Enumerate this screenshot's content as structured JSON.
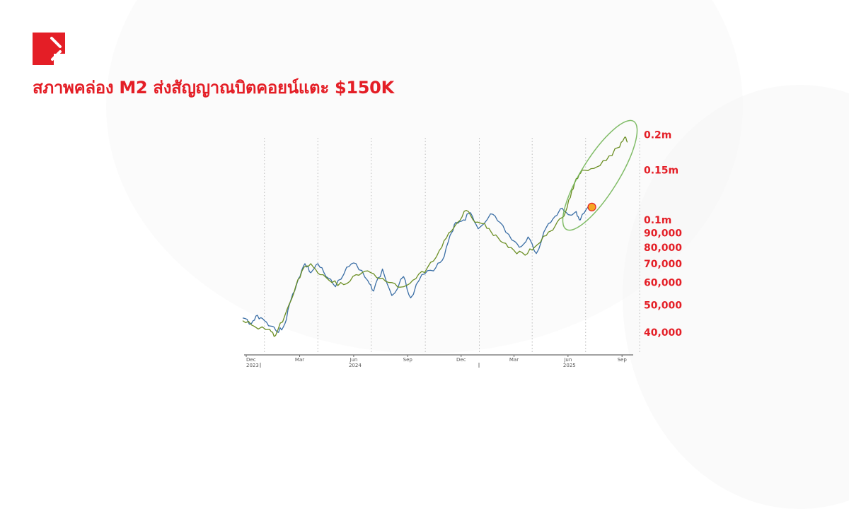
{
  "header": {
    "title": "สภาพคล่อง M2 ส่งสัญญาณบิตคอยน์แตะ $150K",
    "brand_color": "#e41e26"
  },
  "chart_data": {
    "type": "line",
    "title": "",
    "xlabel": "",
    "ylabel": "",
    "y_scale": "log",
    "ylim": [
      38000,
      210000
    ],
    "xlim": [
      "2023-11-25",
      "2025-09-15"
    ],
    "grid": "horizontal red lines at level labels, vertical dotted quarter lines",
    "x_ticks": [
      {
        "date": "2023-12-01",
        "label": "Dec",
        "year": "2023"
      },
      {
        "date": "2024-03-01",
        "label": "Mar"
      },
      {
        "date": "2024-06-01",
        "label": "Jun",
        "year": "2024"
      },
      {
        "date": "2024-09-01",
        "label": "Sep"
      },
      {
        "date": "2024-12-01",
        "label": "Dec"
      },
      {
        "date": "2025-03-01",
        "label": "Mar"
      },
      {
        "date": "2025-06-01",
        "label": "Jun",
        "year": "2025"
      },
      {
        "date": "2025-09-01",
        "label": "Sep"
      }
    ],
    "levels": [
      {
        "value": 200000,
        "label": "0.2m"
      },
      {
        "value": 150000,
        "label": "0.15m"
      },
      {
        "value": 100000,
        "label": "0.1m"
      },
      {
        "value": 90000,
        "label": "90,000"
      },
      {
        "value": 80000,
        "label": "80,000"
      },
      {
        "value": 70000,
        "label": "70,000"
      },
      {
        "value": 60000,
        "label": "60,000"
      },
      {
        "value": 50000,
        "label": "50,000"
      },
      {
        "value": 40000,
        "label": "40,000"
      }
    ],
    "level_color": "#e41e26",
    "series": [
      {
        "color": "#3a6ea5",
        "points": [
          [
            "2023-11-25",
            45000
          ],
          [
            "2023-12-10",
            43000
          ],
          [
            "2023-12-20",
            46000
          ],
          [
            "2024-01-01",
            44000
          ],
          [
            "2024-01-15",
            42000
          ],
          [
            "2024-01-25",
            40000
          ],
          [
            "2024-02-05",
            43000
          ],
          [
            "2024-02-15",
            52000
          ],
          [
            "2024-02-28",
            62000
          ],
          [
            "2024-03-10",
            70000
          ],
          [
            "2024-03-20",
            65000
          ],
          [
            "2024-04-01",
            70000
          ],
          [
            "2024-04-15",
            63000
          ],
          [
            "2024-05-01",
            58000
          ],
          [
            "2024-05-20",
            68000
          ],
          [
            "2024-06-05",
            70000
          ],
          [
            "2024-06-25",
            61000
          ],
          [
            "2024-07-05",
            56000
          ],
          [
            "2024-07-20",
            67000
          ],
          [
            "2024-08-05",
            54000
          ],
          [
            "2024-08-25",
            63000
          ],
          [
            "2024-09-06",
            53000
          ],
          [
            "2024-09-25",
            64000
          ],
          [
            "2024-10-15",
            66000
          ],
          [
            "2024-10-30",
            72000
          ],
          [
            "2024-11-12",
            88000
          ],
          [
            "2024-11-22",
            98000
          ],
          [
            "2024-12-05",
            100000
          ],
          [
            "2024-12-17",
            106000
          ],
          [
            "2024-12-30",
            93000
          ],
          [
            "2025-01-20",
            105000
          ],
          [
            "2025-02-05",
            98000
          ],
          [
            "2025-02-25",
            85000
          ],
          [
            "2025-03-10",
            80000
          ],
          [
            "2025-03-25",
            87000
          ],
          [
            "2025-04-08",
            76000
          ],
          [
            "2025-04-25",
            94000
          ],
          [
            "2025-05-10",
            103000
          ],
          [
            "2025-05-22",
            110000
          ],
          [
            "2025-06-05",
            104000
          ],
          [
            "2025-06-15",
            107000
          ],
          [
            "2025-06-22",
            100000
          ],
          [
            "2025-07-05",
            111000
          ]
        ]
      },
      {
        "color": "#6b8e23",
        "points": [
          [
            "2023-11-25",
            44000
          ],
          [
            "2023-12-15",
            42000
          ],
          [
            "2024-01-10",
            41000
          ],
          [
            "2024-01-20",
            39000
          ],
          [
            "2024-02-05",
            46000
          ],
          [
            "2024-02-20",
            55000
          ],
          [
            "2024-03-05",
            66000
          ],
          [
            "2024-03-20",
            70000
          ],
          [
            "2024-04-05",
            64000
          ],
          [
            "2024-04-25",
            60000
          ],
          [
            "2024-05-15",
            59000
          ],
          [
            "2024-06-05",
            64000
          ],
          [
            "2024-06-25",
            66000
          ],
          [
            "2024-07-15",
            62000
          ],
          [
            "2024-08-05",
            60000
          ],
          [
            "2024-08-25",
            58000
          ],
          [
            "2024-09-15",
            62000
          ],
          [
            "2024-10-05",
            68000
          ],
          [
            "2024-10-25",
            78000
          ],
          [
            "2024-11-10",
            90000
          ],
          [
            "2024-11-25",
            98000
          ],
          [
            "2024-12-10",
            108000
          ],
          [
            "2024-12-25",
            98000
          ],
          [
            "2025-01-10",
            97000
          ],
          [
            "2025-01-25",
            88000
          ],
          [
            "2025-02-10",
            83000
          ],
          [
            "2025-03-01",
            78000
          ],
          [
            "2025-03-20",
            75000
          ],
          [
            "2025-04-05",
            80000
          ],
          [
            "2025-04-25",
            88000
          ],
          [
            "2025-05-10",
            95000
          ],
          [
            "2025-05-25",
            103000
          ],
          [
            "2025-06-05",
            120000
          ],
          [
            "2025-06-15",
            140000
          ],
          [
            "2025-06-25",
            150000
          ],
          [
            "2025-07-15",
            152000
          ],
          [
            "2025-08-05",
            162000
          ],
          [
            "2025-08-25",
            180000
          ],
          [
            "2025-09-05",
            195000
          ],
          [
            "2025-09-10",
            188000
          ]
        ]
      }
    ],
    "annotations": [
      {
        "type": "ellipse",
        "color": "#6ab04c",
        "note_target": "green series 2025 rise"
      },
      {
        "type": "marker",
        "date": "2025-07-08",
        "value": 111000,
        "color": "#f5a623"
      }
    ]
  }
}
